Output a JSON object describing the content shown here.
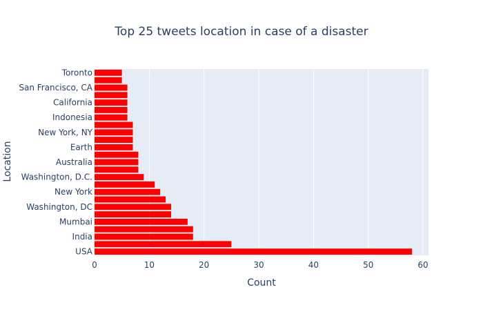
{
  "chart_data": {
    "type": "bar",
    "orientation": "horizontal",
    "title": "Top 25 tweets location in case of a disaster",
    "xlabel": "Count",
    "ylabel": "Location",
    "xlim": [
      0,
      61
    ],
    "x_ticks": [
      0,
      10,
      20,
      30,
      40,
      50,
      60
    ],
    "grid": true,
    "bar_color": "#ff0000",
    "plot_bg": "#e5ecf6",
    "categories": [
      "USA",
      "",
      "India",
      "",
      "Mumbai",
      "",
      "Washington, DC",
      "",
      "New York",
      "",
      "Washington, D.C.",
      "",
      "Australia",
      "",
      "Earth",
      "",
      "New York, NY",
      "",
      "Indonesia",
      "",
      "California",
      "",
      "San Francisco, CA",
      "",
      "Toronto"
    ],
    "values": [
      58,
      25,
      18,
      18,
      17,
      14,
      14,
      13,
      12,
      11,
      9,
      8,
      8,
      8,
      7,
      7,
      7,
      7,
      6,
      6,
      6,
      6,
      6,
      5,
      5
    ]
  }
}
